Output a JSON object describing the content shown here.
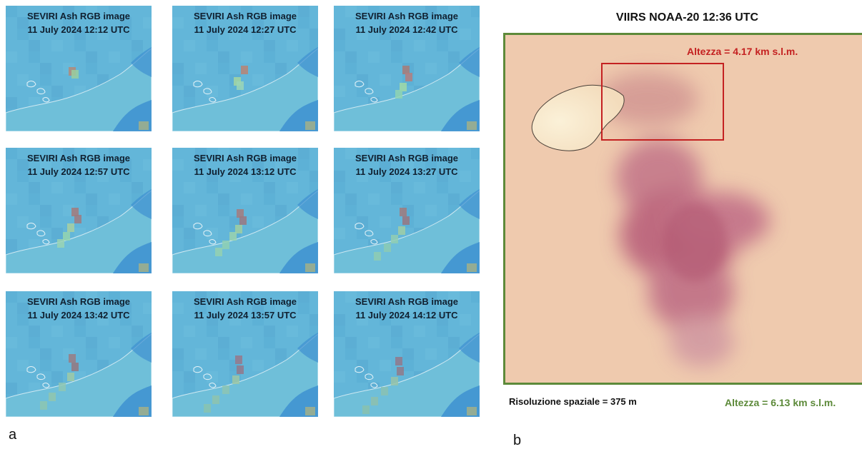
{
  "panel_a": {
    "label": "a",
    "images": [
      {
        "line1": "SEVIRI Ash RGB image",
        "line2": "11 July 2024 12:12 UTC",
        "plume": 0
      },
      {
        "line1": "SEVIRI Ash RGB image",
        "line2": "11 July 2024 12:27 UTC",
        "plume": 1
      },
      {
        "line1": "SEVIRI Ash RGB image",
        "line2": "11 July 2024 12:42 UTC",
        "plume": 2
      },
      {
        "line1": "SEVIRI Ash RGB image",
        "line2": "11 July 2024 12:57 UTC",
        "plume": 3
      },
      {
        "line1": "SEVIRI Ash RGB image",
        "line2": "11 July 2024 13:12 UTC",
        "plume": 4
      },
      {
        "line1": "SEVIRI Ash RGB image",
        "line2": "11 July 2024 13:27 UTC",
        "plume": 5
      },
      {
        "line1": "SEVIRI Ash RGB image",
        "line2": "11 July 2024 13:42 UTC",
        "plume": 6
      },
      {
        "line1": "SEVIRI Ash RGB image",
        "line2": "11 July 2024 13:57 UTC",
        "plume": 7
      },
      {
        "line1": "SEVIRI Ash RGB image",
        "line2": "11 July 2024 14:12 UTC",
        "plume": 8
      }
    ]
  },
  "panel_b": {
    "label": "b",
    "title": "VIIRS NOAA-20 12:36 UTC",
    "red_box_height": "Altezza = 4.17 km s.l.m.",
    "green_box_height": "Altezza = 6.13 km s.l.m.",
    "resolution": "Risoluzione spaziale = 375 m",
    "colors": {
      "red_box": "#c42121",
      "green_box": "#5d8a3a",
      "background": "#efcaae",
      "plume": "#b9607a"
    }
  }
}
